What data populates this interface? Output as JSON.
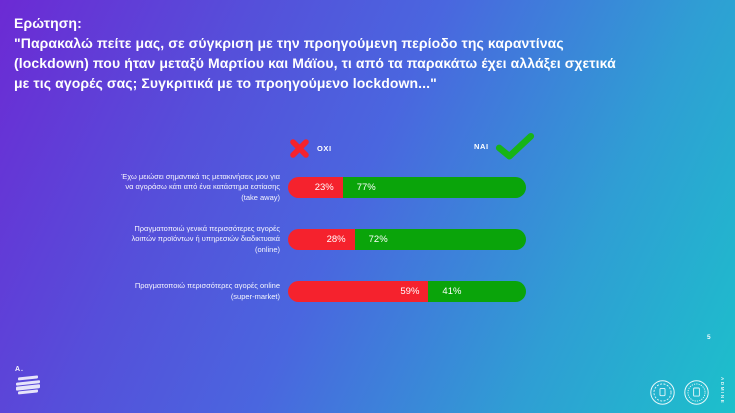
{
  "header": {
    "question_label": "Ερώτηση:",
    "question_lines": [
      "\"Παρακαλώ πείτε μας, σε σύγκριση με την προηγούμενη περίοδο της καραντίνας",
      "(lockdown) που ήταν μεταξύ Μαρτίου και Μάϊου, τι από τα παρακάτω έχει αλλάξει σχετικά",
      "με τις αγορές σας;  Συγκριτικά με το προηγούμενο lockdown...\""
    ]
  },
  "legend": {
    "no_label": "ΟΧΙ",
    "yes_label": "ΝΑΙ",
    "no_color": "#f5222d",
    "yes_color": "#0aa40a"
  },
  "chart_data": {
    "type": "bar",
    "orientation": "horizontal",
    "stacked": true,
    "unit": "percent",
    "xlim": [
      0,
      100
    ],
    "categories": [
      "Έχω μειώσει σημαντικά τις μετακινήσεις μου για να αγοράσω κάτι από ένα κατάστημα εστίασης (take away)",
      "Πραγματοποιώ γενικά περισσότερες αγορές λοιπών προϊόντων ή υπηρεσιών διαδικτυακά (online)",
      "Πραγματοποιώ περισσότερες αγορές online (super-market)"
    ],
    "series": [
      {
        "name": "ΟΧΙ",
        "color": "#f5222d",
        "values": [
          23,
          28,
          59
        ],
        "labels": [
          "23%",
          "28%",
          "59%"
        ]
      },
      {
        "name": "ΝΑΙ",
        "color": "#0aa40a",
        "values": [
          77,
          72,
          41
        ],
        "labels": [
          "77%",
          "72%",
          "41%"
        ]
      }
    ],
    "legend_position": "top"
  },
  "footer": {
    "page_number": "5",
    "logo_mark": "A.",
    "agency_vertical_text": "ADMINE"
  }
}
